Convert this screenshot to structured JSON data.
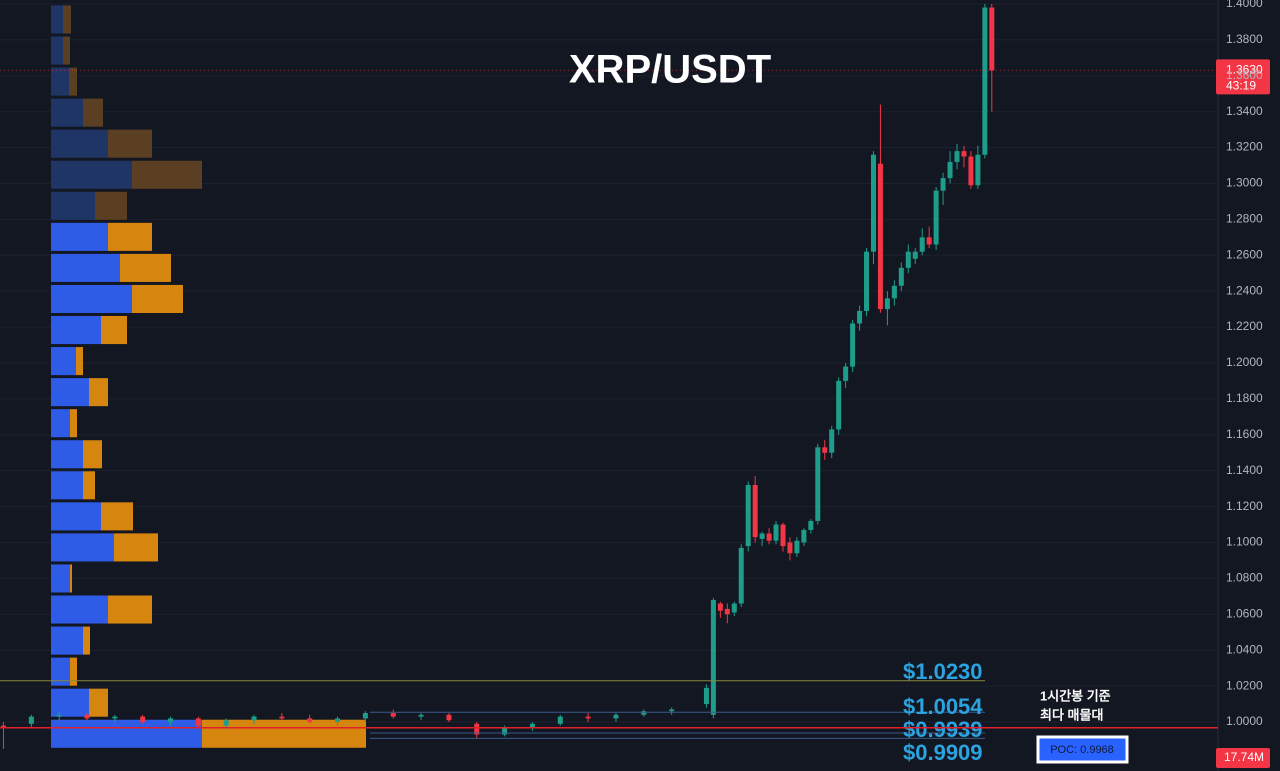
{
  "chart_data": {
    "type": "candlestick",
    "title": "XRP/USDT",
    "colors": {
      "up": "#1e9e8a",
      "down": "#f23645",
      "background": "#131722",
      "grid": "#1c2130"
    },
    "ylim": [
      0.9727,
      1.4022
    ],
    "xlim": [
      -0.5,
      174.5
    ],
    "yticks": [
      {
        "value": 1.0,
        "label": "1.0000"
      },
      {
        "value": 1.02,
        "label": "1.0200"
      },
      {
        "value": 1.04,
        "label": "1.0400"
      },
      {
        "value": 1.06,
        "label": "1.0600"
      },
      {
        "value": 1.08,
        "label": "1.0800"
      },
      {
        "value": 1.1,
        "label": "1.1000"
      },
      {
        "value": 1.12,
        "label": "1.1200"
      },
      {
        "value": 1.14,
        "label": "1.1400"
      },
      {
        "value": 1.16,
        "label": "1.1600"
      },
      {
        "value": 1.18,
        "label": "1.1800"
      },
      {
        "value": 1.2,
        "label": "1.2000"
      },
      {
        "value": 1.22,
        "label": "1.2200"
      },
      {
        "value": 1.24,
        "label": "1.2400"
      },
      {
        "value": 1.26,
        "label": "1.2600"
      },
      {
        "value": 1.28,
        "label": "1.2800"
      },
      {
        "value": 1.3,
        "label": "1.3000"
      },
      {
        "value": 1.32,
        "label": "1.3200"
      },
      {
        "value": 1.34,
        "label": "1.3400"
      },
      {
        "value": 1.36,
        "label": "1.3600"
      },
      {
        "value": 1.38,
        "label": "1.3800"
      },
      {
        "value": 1.4,
        "label": "1.4000"
      }
    ],
    "grid": true,
    "x": [
      0,
      4,
      8,
      12,
      16,
      20,
      24,
      28,
      32,
      36,
      40,
      44,
      48,
      52,
      56,
      60,
      64,
      68,
      72,
      76,
      80,
      84,
      88,
      92,
      96,
      101,
      102,
      103,
      104,
      105,
      106,
      107,
      108,
      109,
      110,
      111,
      112,
      113,
      114,
      115,
      116,
      117,
      118,
      119,
      120,
      121,
      122,
      123,
      124,
      125,
      126,
      127,
      128,
      129,
      130,
      131,
      132,
      133,
      134,
      135,
      136,
      137,
      138,
      139,
      140,
      141,
      142
    ],
    "open": [
      0.998,
      0.999,
      1.003,
      1.004,
      1.002,
      1.003,
      1.0,
      1.002,
      0.998,
      1.001,
      1.003,
      1.002,
      1.0,
      1.002,
      1.005,
      1.003,
      1.004,
      0.999,
      0.993,
      0.997,
      0.999,
      1.003,
      1.002,
      1.004,
      1.006,
      1.01,
      1.004,
      1.066,
      1.063,
      1.061,
      1.066,
      1.098,
      1.132,
      1.102,
      1.105,
      1.101,
      1.11,
      1.1,
      1.094,
      1.1,
      1.107,
      1.112,
      1.153,
      1.15,
      1.163,
      1.19,
      1.198,
      1.222,
      1.229,
      1.262,
      1.311,
      1.23,
      1.236,
      1.243,
      1.253,
      1.258,
      1.262,
      1.27,
      1.266,
      1.296,
      1.303,
      1.312,
      1.318,
      1.315,
      1.299,
      1.316,
      1.398
    ],
    "high": [
      1.0,
      1.004,
      1.006,
      1.005,
      1.004,
      1.004,
      1.003,
      1.003,
      1.002,
      1.004,
      1.005,
      1.004,
      1.003,
      1.006,
      1.007,
      1.005,
      1.005,
      1.0,
      0.998,
      1.0,
      1.004,
      1.005,
      1.005,
      1.007,
      1.008,
      1.021,
      1.069,
      1.067,
      1.066,
      1.067,
      1.099,
      1.134,
      1.137,
      1.106,
      1.108,
      1.112,
      1.111,
      1.103,
      1.103,
      1.108,
      1.113,
      1.155,
      1.157,
      1.165,
      1.192,
      1.2,
      1.224,
      1.232,
      1.264,
      1.318,
      1.344,
      1.24,
      1.246,
      1.256,
      1.266,
      1.264,
      1.275,
      1.276,
      1.298,
      1.306,
      1.318,
      1.322,
      1.321,
      1.318,
      1.321,
      1.4,
      1.4
    ],
    "low": [
      0.985,
      0.997,
      1.001,
      1.001,
      1.0,
      0.999,
      0.998,
      0.997,
      0.996,
      0.999,
      1.001,
      0.999,
      0.998,
      1.0,
      1.002,
      1.001,
      1.0,
      0.991,
      0.992,
      0.995,
      0.998,
      1.0,
      1.0,
      1.003,
      1.004,
      1.008,
      1.002,
      1.058,
      1.055,
      1.059,
      1.064,
      1.095,
      1.1,
      1.098,
      1.099,
      1.099,
      1.095,
      1.09,
      1.092,
      1.098,
      1.105,
      1.11,
      1.146,
      1.147,
      1.16,
      1.186,
      1.195,
      1.218,
      1.226,
      1.255,
      1.228,
      1.221,
      1.232,
      1.24,
      1.25,
      1.255,
      1.26,
      1.264,
      1.263,
      1.288,
      1.3,
      1.308,
      1.309,
      1.297,
      1.297,
      1.314,
      1.34
    ],
    "close": [
      0.997,
      1.003,
      1.004,
      1.002,
      1.003,
      1.0,
      1.002,
      0.998,
      1.001,
      1.003,
      1.002,
      1.0,
      1.002,
      1.005,
      1.003,
      1.004,
      1.001,
      0.993,
      0.997,
      0.999,
      1.003,
      1.002,
      1.004,
      1.006,
      1.007,
      1.019,
      1.068,
      1.062,
      1.06,
      1.066,
      1.097,
      1.132,
      1.103,
      1.105,
      1.101,
      1.11,
      1.098,
      1.094,
      1.101,
      1.107,
      1.112,
      1.153,
      1.15,
      1.163,
      1.19,
      1.198,
      1.222,
      1.229,
      1.262,
      1.316,
      1.23,
      1.236,
      1.243,
      1.253,
      1.262,
      1.262,
      1.27,
      1.266,
      1.296,
      1.303,
      1.312,
      1.318,
      1.315,
      1.299,
      1.316,
      1.398,
      1.363
    ],
    "volume_profile": {
      "bins": [
        1.4,
        1.3827,
        1.3654,
        1.3481,
        1.3308,
        1.3135,
        1.2962,
        1.2789,
        1.2616,
        1.2443,
        1.227,
        1.2097,
        1.1924,
        1.1751,
        1.1578,
        1.1405,
        1.1232,
        1.1059,
        1.0886,
        1.0713,
        1.054,
        1.0367,
        1.0194,
        1.0021,
        0.9848
      ],
      "buy": [
        12,
        12,
        18,
        32,
        57,
        81,
        44,
        57,
        69,
        81,
        50,
        25,
        38,
        19,
        32,
        32,
        50,
        63,
        19,
        57,
        32,
        19,
        38,
        151
      ],
      "sell": [
        8,
        7,
        8,
        20,
        44,
        70,
        32,
        44,
        51,
        51,
        26,
        7,
        19,
        7,
        19,
        12,
        32,
        44,
        2,
        44,
        7,
        7,
        19,
        164
      ],
      "value_area": [
        0.9848,
        1.2789
      ],
      "colors": {
        "buy": "#2e5ce6",
        "sell": "#d6860f",
        "buy_dim": "#1f3566",
        "sell_dim": "#5a3f22"
      }
    },
    "levels": [
      {
        "value": 1.023,
        "label": "$1.0230"
      },
      {
        "value": 1.0054,
        "label": "$1.0054"
      },
      {
        "value": 0.9939,
        "label": "$0.9939"
      },
      {
        "value": 0.9909,
        "label": "$0.9909"
      }
    ],
    "poc": {
      "value": 0.9968,
      "label": "POC: 0.9968",
      "note": [
        "1시간봉 기준",
        "최다 매물대"
      ]
    },
    "last_price": {
      "value": 1.363,
      "label": "1.3630",
      "countdown": "43:19"
    },
    "volume_label": "17.74M"
  }
}
